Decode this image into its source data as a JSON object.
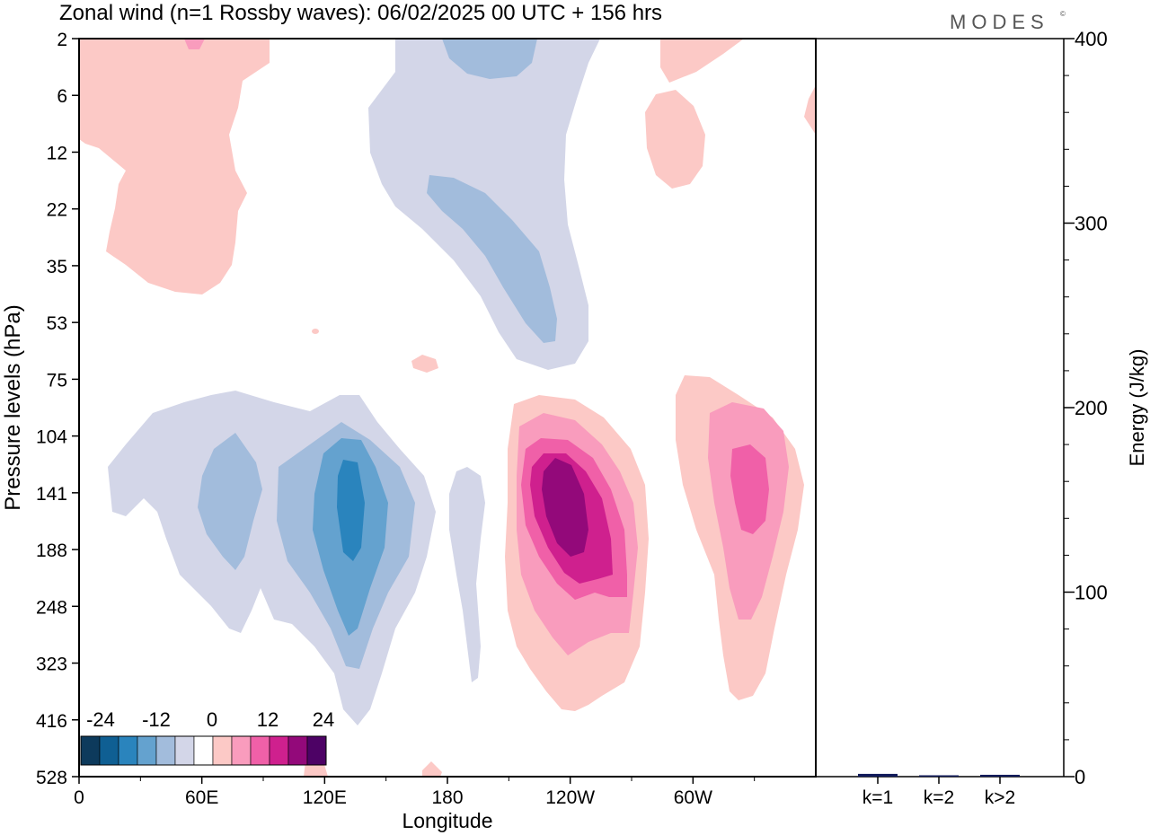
{
  "title": "Zonal wind (n=1 Rossby waves):  06/02/2025  00 UTC  + 156 hrs",
  "brand": "MODES",
  "brand_mark": "©",
  "chart_data": [
    {
      "type": "heatmap",
      "xlabel": "Longitude",
      "ylabel": "Pressure levels (hPa)",
      "x_ticks": [
        "0",
        "60E",
        "120E",
        "180",
        "120W",
        "60W"
      ],
      "y_ticks": [
        "2",
        "6",
        "12",
        "22",
        "35",
        "53",
        "75",
        "104",
        "141",
        "188",
        "248",
        "323",
        "416",
        "528"
      ],
      "colorbar": {
        "tick_labels": [
          "-24",
          "-12",
          "0",
          "12",
          "24"
        ],
        "colors": [
          "#0d3a5c",
          "#0f5f93",
          "#2a84bd",
          "#64a2cf",
          "#a2bcdc",
          "#d3d6e8",
          "#ffffff",
          "#fcc9c6",
          "#f99cbd",
          "#f060a8",
          "#cf208e",
          "#93097a",
          "#4d0265"
        ]
      },
      "features": [
        {
          "kind": "easterly",
          "level": 1,
          "lon": 225,
          "p_range": [
            2,
            75
          ]
        },
        {
          "kind": "easterly",
          "level": 2,
          "lon": 215,
          "p_range": [
            16,
            60
          ]
        },
        {
          "kind": "easterly",
          "level": 1,
          "lon": 80,
          "p_range": [
            80,
            450
          ]
        },
        {
          "kind": "easterly",
          "level": 2,
          "lon": 55,
          "p_range": [
            104,
            200
          ]
        },
        {
          "kind": "easterly",
          "level": 3,
          "lon": 130,
          "p_range": [
            104,
            330
          ]
        },
        {
          "kind": "easterly",
          "level": 4,
          "lon": 132,
          "p_range": [
            115,
            210
          ]
        },
        {
          "kind": "westerly",
          "level": 1,
          "lon": 245,
          "p_range": [
            90,
            440
          ]
        },
        {
          "kind": "westerly",
          "level": 4,
          "lon": 245,
          "p_range": [
            120,
            210
          ]
        },
        {
          "kind": "westerly",
          "level": 1,
          "lon": 325,
          "p_range": [
            85,
            410
          ]
        },
        {
          "kind": "westerly",
          "level": 3,
          "lon": 325,
          "p_range": [
            130,
            200
          ]
        },
        {
          "kind": "westerly",
          "level": 1,
          "lon": 30,
          "p_range": [
            2,
            45
          ]
        }
      ]
    },
    {
      "type": "bar",
      "categories": [
        "k=1",
        "k=2",
        "k>2"
      ],
      "values": [
        1.5,
        0.5,
        1.0
      ],
      "ylabel": "Energy (J/kg)",
      "y_ticks": [
        "0",
        "100",
        "200",
        "300",
        "400"
      ],
      "ylim": [
        0,
        400
      ],
      "bar_color": "#101a5a"
    }
  ]
}
